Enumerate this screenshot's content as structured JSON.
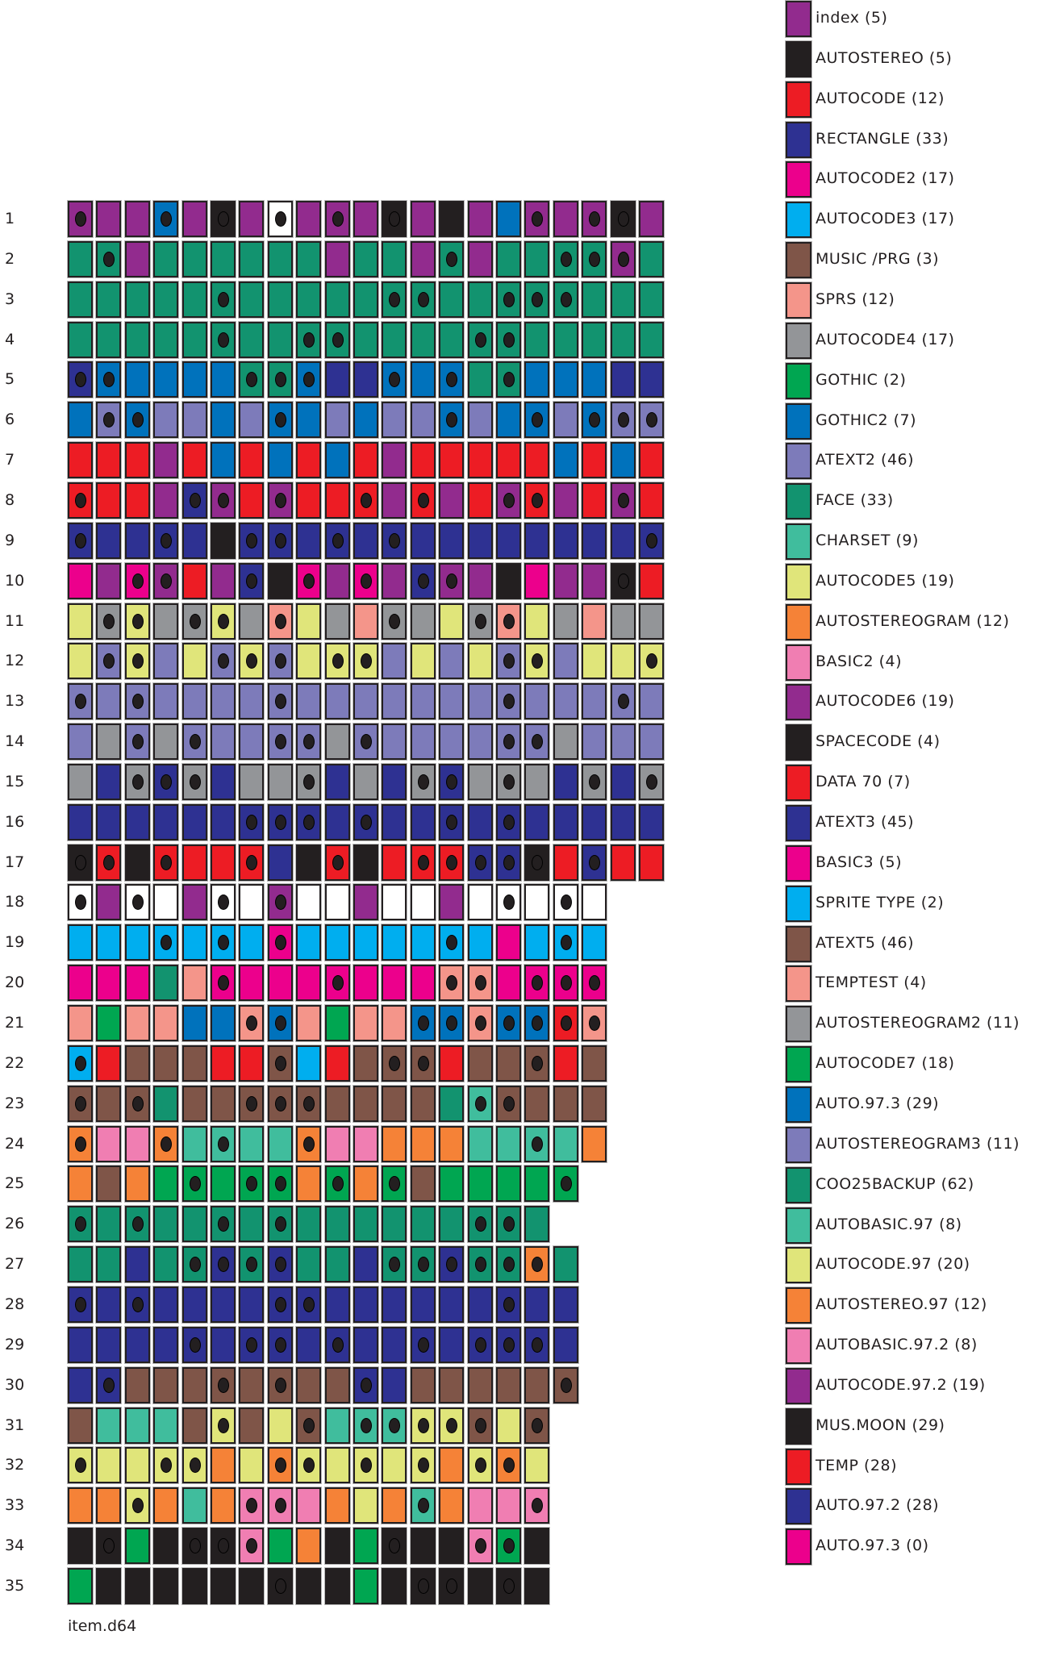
{
  "palette": {
    "P": "#922B8E",
    "K": "#231F20",
    "R": "#ED1C24",
    "N": "#2E3192",
    "M": "#EC008C",
    "C": "#00AEEF",
    "B": "#7F5548",
    "S": "#F4958A",
    "G": "#939598",
    "E": "#00A651",
    "U": "#0072BC",
    "L": "#7D7BBA",
    "F": "#12936F",
    "T": "#40BD9D",
    "Y": "#E0E57A",
    "O": "#F58237",
    "I": "#F07EB2",
    "W": "#FFFFFF"
  },
  "legend": [
    {
      "label": "index (5)",
      "color": "#922B8E"
    },
    {
      "label": "AUTOSTEREO (5)",
      "color": "#231F20"
    },
    {
      "label": "AUTOCODE (12)",
      "color": "#ED1C24"
    },
    {
      "label": "RECTANGLE (33)",
      "color": "#2E3192"
    },
    {
      "label": "AUTOCODE2 (17)",
      "color": "#EC008C"
    },
    {
      "label": "AUTOCODE3 (17)",
      "color": "#00AEEF"
    },
    {
      "label": "MUSIC /PRG (3)",
      "color": "#7F5548"
    },
    {
      "label": "SPRS (12)",
      "color": "#F4958A"
    },
    {
      "label": "AUTOCODE4 (17)",
      "color": "#939598"
    },
    {
      "label": "GOTHIC (2)",
      "color": "#00A651"
    },
    {
      "label": "GOTHIC2 (7)",
      "color": "#0072BC"
    },
    {
      "label": "ATEXT2 (46)",
      "color": "#7D7BBA"
    },
    {
      "label": "FACE (33)",
      "color": "#12936F"
    },
    {
      "label": "CHARSET (9)",
      "color": "#40BD9D"
    },
    {
      "label": "AUTOCODE5 (19)",
      "color": "#E0E57A"
    },
    {
      "label": "AUTOSTEREOGRAM (12)",
      "color": "#F58237"
    },
    {
      "label": "BASIC2 (4)",
      "color": "#F07EB2"
    },
    {
      "label": "AUTOCODE6 (19)",
      "color": "#922B8E"
    },
    {
      "label": "SPACECODE (4)",
      "color": "#231F20"
    },
    {
      "label": "DATA 70 (7)",
      "color": "#ED1C24"
    },
    {
      "label": "ATEXT3 (45)",
      "color": "#2E3192"
    },
    {
      "label": "BASIC3 (5)",
      "color": "#EC008C"
    },
    {
      "label": "SPRITE TYPE (2)",
      "color": "#00AEEF"
    },
    {
      "label": "ATEXT5 (46)",
      "color": "#7F5548"
    },
    {
      "label": "TEMPTEST (4)",
      "color": "#F4958A"
    },
    {
      "label": "AUTOSTEREOGRAM2 (11)",
      "color": "#939598"
    },
    {
      "label": "AUTOCODE7 (18)",
      "color": "#00A651"
    },
    {
      "label": "AUTO.97.3 (29)",
      "color": "#0072BC"
    },
    {
      "label": "AUTOSTEREOGRAM3 (11)",
      "color": "#7D7BBA"
    },
    {
      "label": "COO25BACKUP (62)",
      "color": "#12936F"
    },
    {
      "label": "AUTOBASIC.97 (8)",
      "color": "#40BD9D"
    },
    {
      "label": "AUTOCODE.97 (20)",
      "color": "#E0E57A"
    },
    {
      "label": "AUTOSTEREO.97 (12)",
      "color": "#F58237"
    },
    {
      "label": "AUTOBASIC.97.2 (8)",
      "color": "#F07EB2"
    },
    {
      "label": "AUTOCODE.97.2 (19)",
      "color": "#922B8E"
    },
    {
      "label": "MUS.MOON (29)",
      "color": "#231F20"
    },
    {
      "label": "TEMP (28)",
      "color": "#ED1C24"
    },
    {
      "label": "AUTO.97.2 (28)",
      "color": "#2E3192"
    },
    {
      "label": "AUTO.97.3 (0)",
      "color": "#EC008C"
    }
  ],
  "tracks": [
    {
      "label": "1",
      "sectors": "P* P P U* P K* P W* P P* P K* P K P U P* P P* K* P"
    },
    {
      "label": "2",
      "sectors": "F F* P F F F F F F P F F P F* P F F F* F* P* F"
    },
    {
      "label": "3",
      "sectors": "F F F F F F* F F F F F F* F* F F F* F* F* F F F"
    },
    {
      "label": "4",
      "sectors": "F F F F F F* F F F* F* F F F F F* F* F F F F F"
    },
    {
      "label": "5",
      "sectors": "N* U* U U U U F* F* U* N N U* U U* F F* U U U N N"
    },
    {
      "label": "6",
      "sectors": "U L* U* L L U L U* U L U L L U* L U U* L U* L* L*"
    },
    {
      "label": "7",
      "sectors": "R R R P R U R U R U R P R R R R R U R U R"
    },
    {
      "label": "8",
      "sectors": "R* R R P N* P* R P* R R R* P R* P R P* R* P R P* R"
    },
    {
      "label": "9",
      "sectors": "N* N N N* N K N* N* N N* N N* N N N N N N N N N*"
    },
    {
      "label": "10",
      "sectors": "M P M* P* R P N* K M* P M* P N* P* P K M P P K* R"
    },
    {
      "label": "11",
      "sectors": "Y G* Y* G G* Y* G S* Y G S G* G Y G* S* Y G S G G"
    },
    {
      "label": "12",
      "sectors": "Y L* Y* L Y L* Y* L* Y Y* Y* L Y L Y L* Y* L Y Y Y*"
    },
    {
      "label": "13",
      "sectors": "L* L L* L L L L L* L L L L L L L L* L L L L* L"
    },
    {
      "label": "14",
      "sectors": "L G L* G L* L L L* L* G L* L L L L L* L* G L L L"
    },
    {
      "label": "15",
      "sectors": "G N G* N* G* N G G G* N G N G* N* G G* G N G* N G*"
    },
    {
      "label": "16",
      "sectors": "N N N N N N N* N* N* N N* N N N* N N* N N N N N"
    },
    {
      "label": "17",
      "sectors": "K* R* K R* R R R* N K R* K R R* R* N* N* K* R N* R R"
    },
    {
      "label": "18",
      "sectors": "W* P W* W P W* W P* W W P W W P W W* W W* W"
    },
    {
      "label": "19",
      "sectors": "C C C C* C C* C M* C C C C C C* C M C C* C"
    },
    {
      "label": "20",
      "sectors": "M M M F S M* M M M M* M M M S* S* M M* M* M*"
    },
    {
      "label": "21",
      "sectors": "S E S S U U S* U* S E S S U* U* S* U* U* R* S*"
    },
    {
      "label": "22",
      "sectors": "C* R B B B R R B* C R B B* B* R B B B* R B"
    },
    {
      "label": "23",
      "sectors": "B* B B* F B B B* B* B* B B B B F T* B* B B B"
    },
    {
      "label": "24",
      "sectors": "O* I I O* T T* T T O* I I O O O T T T* T O"
    },
    {
      "label": "25",
      "sectors": "O B O E E* E E* E* O E* O E* B E E E E E*"
    },
    {
      "label": "26",
      "sectors": "F* F F* F F F* F F* F F F F F F F* F* F"
    },
    {
      "label": "27",
      "sectors": "F F N F F* N* F* N* F F N F* F* N* F* F* O* F"
    },
    {
      "label": "28",
      "sectors": "N* N N* N N N N N* N* N N N N N N N* N N"
    },
    {
      "label": "29",
      "sectors": "N N N N N* N N* N* N N* N N N* N N* N* N* N"
    },
    {
      "label": "30",
      "sectors": "N N* B B B B* B B* B B N* N B B B B B B*"
    },
    {
      "label": "31",
      "sectors": "B T T T B Y* B Y B* T T* T* Y* Y* B* Y B*"
    },
    {
      "label": "32",
      "sectors": "Y* Y Y Y* Y* O Y O* Y* Y Y* Y Y* O Y* O* Y"
    },
    {
      "label": "33",
      "sectors": "O O Y* O T O I* I* I O Y O T* O I I I*"
    },
    {
      "label": "34",
      "sectors": "K K* E K K* K* I* E O K E K* K K I* E* K"
    },
    {
      "label": "35",
      "sectors": "E K K K K K K K* K K E K K* K* K K* K"
    }
  ],
  "footer": {
    "filename": "item.d64"
  }
}
